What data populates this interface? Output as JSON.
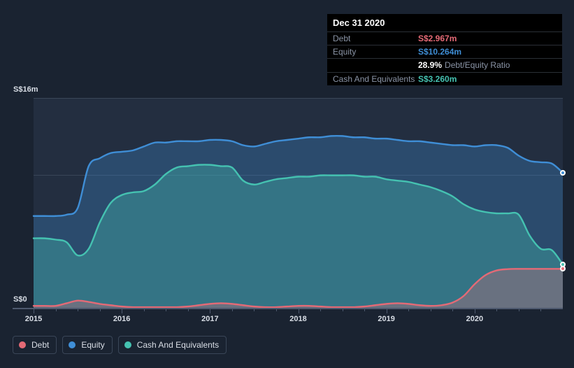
{
  "chart": {
    "type": "area",
    "background_color": "#1a2331",
    "plot_background": "#232e40",
    "grid_color": "#3a4658",
    "axis_line_color": "#4d596e",
    "ylim": [
      0,
      16
    ],
    "y_unit_prefix": "S$",
    "y_unit_suffix": "m",
    "y_ticks": [
      0,
      16
    ],
    "y_tick_labels": [
      "S$0",
      "S$16m"
    ],
    "x_labels": [
      "2015",
      "2016",
      "2017",
      "2018",
      "2019",
      "2020"
    ],
    "x_minor_per_major": 3,
    "label_fontsize": 11,
    "label_color": "#d9dee6",
    "series": {
      "equity": {
        "label": "Equity",
        "color": "#3f8ed6",
        "fill_color": "rgba(63,142,214,0.30)",
        "line_width": 2.4,
        "data": [
          7.0,
          7.0,
          7.0,
          7.1,
          7.6,
          10.8,
          11.4,
          11.8,
          11.9,
          12.0,
          12.3,
          12.6,
          12.6,
          12.7,
          12.7,
          12.7,
          12.8,
          12.8,
          12.7,
          12.4,
          12.3,
          12.5,
          12.7,
          12.8,
          12.9,
          13.0,
          13.0,
          13.1,
          13.1,
          13.0,
          13.0,
          12.9,
          12.9,
          12.8,
          12.7,
          12.7,
          12.6,
          12.5,
          12.4,
          12.4,
          12.3,
          12.4,
          12.4,
          12.2,
          11.6,
          11.2,
          11.1,
          11.0,
          10.3
        ]
      },
      "cash": {
        "label": "Cash And Equivalents",
        "color": "#45c2b1",
        "fill_color": "rgba(69,194,177,0.35)",
        "line_width": 2.4,
        "data": [
          5.3,
          5.3,
          5.2,
          5.0,
          4.0,
          4.5,
          6.5,
          8.0,
          8.6,
          8.8,
          8.9,
          9.4,
          10.2,
          10.7,
          10.8,
          10.9,
          10.9,
          10.8,
          10.7,
          9.7,
          9.4,
          9.6,
          9.8,
          9.9,
          10.0,
          10.0,
          10.1,
          10.1,
          10.1,
          10.1,
          10.0,
          10.0,
          9.8,
          9.7,
          9.6,
          9.4,
          9.2,
          8.9,
          8.5,
          7.9,
          7.5,
          7.3,
          7.2,
          7.2,
          7.1,
          5.5,
          4.5,
          4.4,
          3.3
        ]
      },
      "debt": {
        "label": "Debt",
        "color": "#e46a76",
        "fill_color": "rgba(228,106,118,0.30)",
        "line_width": 2.4,
        "data": [
          0.15,
          0.15,
          0.15,
          0.35,
          0.55,
          0.45,
          0.3,
          0.2,
          0.1,
          0.05,
          0.05,
          0.05,
          0.05,
          0.05,
          0.1,
          0.2,
          0.3,
          0.35,
          0.3,
          0.2,
          0.1,
          0.05,
          0.05,
          0.1,
          0.15,
          0.15,
          0.1,
          0.05,
          0.05,
          0.05,
          0.1,
          0.2,
          0.3,
          0.35,
          0.3,
          0.2,
          0.15,
          0.2,
          0.4,
          0.9,
          1.8,
          2.5,
          2.85,
          2.95,
          2.97,
          2.97,
          2.97,
          2.97,
          2.97
        ]
      }
    },
    "end_markers": [
      {
        "series": "equity",
        "y": 10.3
      },
      {
        "series": "cash",
        "y": 3.3
      },
      {
        "series": "debt",
        "y": 2.97
      }
    ]
  },
  "tooltip": {
    "date": "Dec 31 2020",
    "rows": [
      {
        "key": "Debt",
        "value": "S$2.967m",
        "cls": "val-debt"
      },
      {
        "key": "Equity",
        "value": "S$10.264m",
        "cls": "val-equity"
      },
      {
        "key": "",
        "value": "28.9%",
        "cls": "val-ratio",
        "unit": "Debt/Equity Ratio"
      },
      {
        "key": "Cash And Equivalents",
        "value": "S$3.260m",
        "cls": "val-cash"
      }
    ]
  },
  "legend": [
    {
      "key": "debt",
      "label": "Debt",
      "color": "#e46a76"
    },
    {
      "key": "equity",
      "label": "Equity",
      "color": "#3f8ed6"
    },
    {
      "key": "cash",
      "label": "Cash And Equivalents",
      "color": "#45c2b1"
    }
  ]
}
